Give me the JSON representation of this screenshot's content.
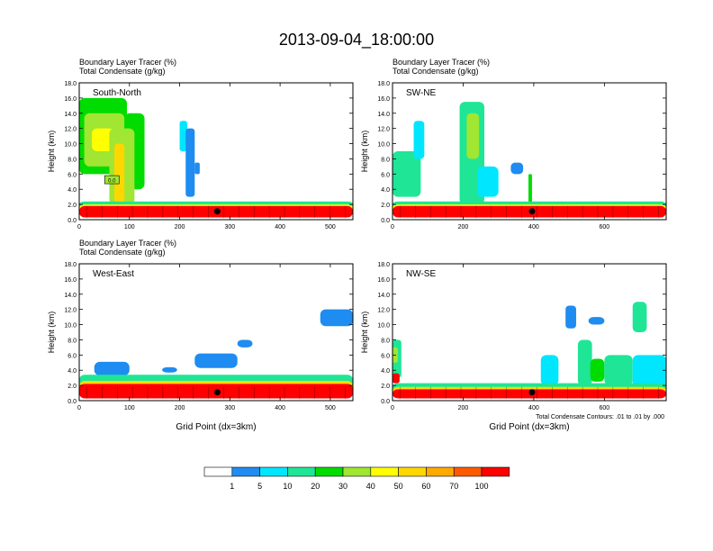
{
  "title": "2013-09-04_18:00:00",
  "footnote": "Total Condensate Contours: .01 to .01 by .000",
  "colors": {
    "white": "#ffffff",
    "blue": "#1e8cf0",
    "cyan": "#00e6ff",
    "teal": "#1ee696",
    "green": "#00dc00",
    "lime": "#a0e632",
    "yellow": "#ffff00",
    "gold": "#ffd700",
    "orange": "#ffaa00",
    "redorange": "#ff5a00",
    "red": "#ff0000"
  },
  "chart_data": {
    "type": "heatmap",
    "title": "2013-09-04_18:00:00",
    "colorbar": {
      "labels": [
        "1",
        "5",
        "10",
        "20",
        "30",
        "40",
        "50",
        "60",
        "70",
        "100"
      ],
      "colors": [
        "#ffffff",
        "#1e8cf0",
        "#00e6ff",
        "#1ee696",
        "#00dc00",
        "#a0e632",
        "#ffff00",
        "#ffd700",
        "#ffaa00",
        "#ff5a00",
        "#ff0000"
      ]
    },
    "panels": [
      {
        "label": "South-North",
        "header1": "Boundary Layer Tracer   (%)",
        "header2": "Total Condensate   (g/kg)",
        "ylabel": "Height (km)",
        "xlabel": "",
        "xlim": [
          0,
          545
        ],
        "ylim": [
          0,
          18
        ],
        "xticks": [
          "0",
          "100",
          "200",
          "300",
          "400",
          "500"
        ],
        "xtickvals": [
          0,
          100,
          200,
          300,
          400,
          500
        ],
        "yticks": [
          "0.0",
          "2.0",
          "4.0",
          "6.0",
          "8.0",
          "10.0",
          "12.0",
          "14.0",
          "16.0",
          "18.0"
        ],
        "contour_label": "0.0",
        "marker": [
          275,
          1.1
        ],
        "blobs": [
          {
            "x": [
              0,
              95
            ],
            "y": [
              6,
              16
            ],
            "c": 4
          },
          {
            "x": [
              10,
              90
            ],
            "y": [
              7,
              14
            ],
            "c": 5
          },
          {
            "x": [
              25,
              70
            ],
            "y": [
              9,
              12
            ],
            "c": 6
          },
          {
            "x": [
              90,
              130
            ],
            "y": [
              4,
              14
            ],
            "c": 4
          },
          {
            "x": [
              60,
              110
            ],
            "y": [
              2,
              12
            ],
            "c": 5
          },
          {
            "x": [
              70,
              90
            ],
            "y": [
              2,
              10
            ],
            "c": 7
          },
          {
            "x": [
              200,
              215
            ],
            "y": [
              9,
              13
            ],
            "c": 2
          },
          {
            "x": [
              212,
              230
            ],
            "y": [
              3,
              12
            ],
            "c": 1
          },
          {
            "x": [
              230,
              240
            ],
            "y": [
              6,
              7.5
            ],
            "c": 1
          },
          {
            "x": [
              0,
              545
            ],
            "y": [
              1.6,
              2.4
            ],
            "c": 3
          },
          {
            "x": [
              0,
              545
            ],
            "y": [
              1.2,
              2
            ],
            "c": 6
          },
          {
            "x": [
              0,
              545
            ],
            "y": [
              0.3,
              1.8
            ],
            "c": 10
          }
        ]
      },
      {
        "label": "SW-NE",
        "header1": "Boundary Layer Tracer   (%)",
        "header2": "Total Condensate   (g/kg)",
        "ylabel": "Height (km)",
        "xlabel": "",
        "xlim": [
          0,
          775
        ],
        "ylim": [
          0,
          18
        ],
        "xticks": [
          "0",
          "200",
          "400",
          "600"
        ],
        "xtickvals": [
          0,
          200,
          400,
          600
        ],
        "yticks": [
          "0.0",
          "2.0",
          "4.0",
          "6.0",
          "8.0",
          "10.0",
          "12.0",
          "14.0",
          "16.0",
          "18.0"
        ],
        "contour_label": "",
        "marker": [
          395,
          1.1
        ],
        "blobs": [
          {
            "x": [
              0,
              80
            ],
            "y": [
              3,
              9
            ],
            "c": 3
          },
          {
            "x": [
              60,
              90
            ],
            "y": [
              8,
              13
            ],
            "c": 2
          },
          {
            "x": [
              190,
              260
            ],
            "y": [
              2,
              15.5
            ],
            "c": 3
          },
          {
            "x": [
              210,
              245
            ],
            "y": [
              8,
              14
            ],
            "c": 5
          },
          {
            "x": [
              240,
              300
            ],
            "y": [
              3,
              7
            ],
            "c": 2
          },
          {
            "x": [
              335,
              370
            ],
            "y": [
              6,
              7.5
            ],
            "c": 1
          },
          {
            "x": [
              385,
              395
            ],
            "y": [
              2,
              6
            ],
            "c": 4
          },
          {
            "x": [
              0,
              775
            ],
            "y": [
              1.6,
              2.4
            ],
            "c": 3
          },
          {
            "x": [
              0,
              775
            ],
            "y": [
              1.2,
              2
            ],
            "c": 6
          },
          {
            "x": [
              0,
              775
            ],
            "y": [
              0.3,
              1.8
            ],
            "c": 10
          }
        ]
      },
      {
        "label": "West-East",
        "header1": "Boundary Layer Tracer   (%)",
        "header2": "Total Condensate   (g/kg)",
        "ylabel": "Height (km)",
        "xlabel": "Grid Point (dx=3km)",
        "xlim": [
          0,
          545
        ],
        "ylim": [
          0,
          18
        ],
        "xticks": [
          "0",
          "100",
          "200",
          "300",
          "400",
          "500"
        ],
        "xtickvals": [
          0,
          100,
          200,
          300,
          400,
          500
        ],
        "yticks": [
          "0.0",
          "2.0",
          "4.0",
          "6.0",
          "8.0",
          "10.0",
          "12.0",
          "14.0",
          "16.0",
          "18.0"
        ],
        "contour_label": "",
        "marker": [
          275,
          1.1
        ],
        "blobs": [
          {
            "x": [
              480,
              545
            ],
            "y": [
              9.8,
              12
            ],
            "c": 1
          },
          {
            "x": [
              315,
              345
            ],
            "y": [
              7,
              8
            ],
            "c": 1
          },
          {
            "x": [
              230,
              315
            ],
            "y": [
              4.3,
              6.2
            ],
            "c": 1
          },
          {
            "x": [
              165,
              195
            ],
            "y": [
              3.7,
              4.4
            ],
            "c": 1
          },
          {
            "x": [
              30,
              100
            ],
            "y": [
              3.3,
              5.1
            ],
            "c": 1
          },
          {
            "x": [
              0,
              545
            ],
            "y": [
              1.8,
              3.4
            ],
            "c": 3
          },
          {
            "x": [
              0,
              545
            ],
            "y": [
              1.2,
              2.6
            ],
            "c": 7
          },
          {
            "x": [
              0,
              545
            ],
            "y": [
              0.3,
              2.2
            ],
            "c": 10
          }
        ]
      },
      {
        "label": "NW-SE",
        "header1": "",
        "header2": "",
        "ylabel": "Height (km)",
        "xlabel": "Grid Point (dx=3km)",
        "xlim": [
          0,
          775
        ],
        "ylim": [
          0,
          18
        ],
        "xticks": [
          "0",
          "200",
          "400",
          "600"
        ],
        "xtickvals": [
          0,
          200,
          400,
          600
        ],
        "yticks": [
          "0.0",
          "2.0",
          "4.0",
          "6.0",
          "8.0",
          "10.0",
          "12.0",
          "14.0",
          "16.0",
          "18.0"
        ],
        "contour_label": "",
        "marker": [
          395,
          1.1
        ],
        "blobs": [
          {
            "x": [
              0,
              25
            ],
            "y": [
              3,
              8
            ],
            "c": 3
          },
          {
            "x": [
              0,
              15
            ],
            "y": [
              5,
              7
            ],
            "c": 5
          },
          {
            "x": [
              0,
              20
            ],
            "y": [
              2.3,
              3.6
            ],
            "c": 10
          },
          {
            "x": [
              490,
              520
            ],
            "y": [
              9.5,
              12.5
            ],
            "c": 1
          },
          {
            "x": [
              680,
              720
            ],
            "y": [
              9,
              13
            ],
            "c": 3
          },
          {
            "x": [
              555,
              600
            ],
            "y": [
              10,
              11
            ],
            "c": 1
          },
          {
            "x": [
              525,
              565
            ],
            "y": [
              2,
              8
            ],
            "c": 3
          },
          {
            "x": [
              560,
              600
            ],
            "y": [
              2.5,
              5.5
            ],
            "c": 4
          },
          {
            "x": [
              600,
              680
            ],
            "y": [
              2,
              6
            ],
            "c": 3
          },
          {
            "x": [
              680,
              775
            ],
            "y": [
              1.5,
              6
            ],
            "c": 2
          },
          {
            "x": [
              420,
              470
            ],
            "y": [
              2,
              6
            ],
            "c": 2
          },
          {
            "x": [
              0,
              775
            ],
            "y": [
              1.3,
              2.3
            ],
            "c": 3
          },
          {
            "x": [
              0,
              775
            ],
            "y": [
              0.8,
              1.8
            ],
            "c": 7
          },
          {
            "x": [
              0,
              775
            ],
            "y": [
              0.3,
              1.5
            ],
            "c": 10
          }
        ]
      }
    ]
  }
}
